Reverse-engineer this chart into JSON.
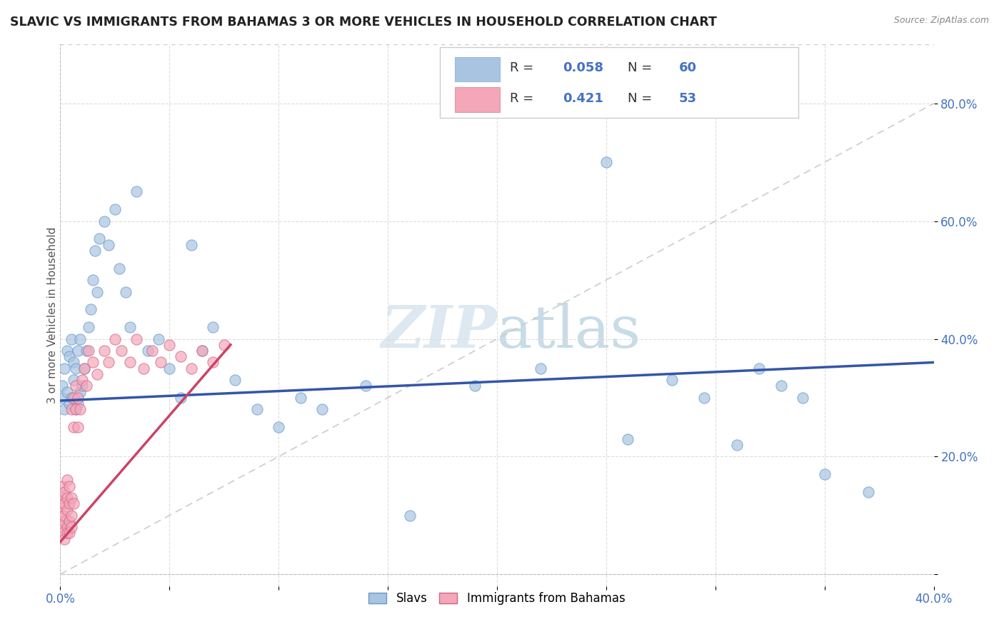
{
  "title": "SLAVIC VS IMMIGRANTS FROM BAHAMAS 3 OR MORE VEHICLES IN HOUSEHOLD CORRELATION CHART",
  "source": "Source: ZipAtlas.com",
  "ylabel": "3 or more Vehicles in Household",
  "xlim": [
    0.0,
    0.4
  ],
  "ylim": [
    -0.02,
    0.9
  ],
  "xticks": [
    0.0,
    0.05,
    0.1,
    0.15,
    0.2,
    0.25,
    0.3,
    0.35,
    0.4
  ],
  "xticklabels": [
    "0.0%",
    "",
    "",
    "",
    "",
    "",
    "",
    "",
    "40.0%"
  ],
  "yticks": [
    0.0,
    0.2,
    0.4,
    0.6,
    0.8
  ],
  "yticklabels": [
    "",
    "20.0%",
    "40.0%",
    "60.0%",
    "80.0%"
  ],
  "slavs_color": "#a8c4e0",
  "slavs_edge_color": "#6699cc",
  "bahamas_color": "#f4a7b9",
  "bahamas_edge_color": "#cc6688",
  "slavs_R": 0.058,
  "slavs_N": 60,
  "bahamas_R": 0.421,
  "bahamas_N": 53,
  "legend_labels": [
    "Slavs",
    "Immigrants from Bahamas"
  ],
  "slavs_line_color": "#3355aa",
  "bahamas_line_color": "#cc4466",
  "diagonal_line_color": "#cccccc",
  "watermark_color": "#dde8f0",
  "background_color": "#ffffff",
  "grid_color": "#dddddd",
  "slavs_x": [
    0.001,
    0.001,
    0.002,
    0.002,
    0.003,
    0.003,
    0.004,
    0.004,
    0.005,
    0.005,
    0.006,
    0.006,
    0.007,
    0.007,
    0.008,
    0.008,
    0.009,
    0.009,
    0.01,
    0.011,
    0.012,
    0.013,
    0.014,
    0.015,
    0.016,
    0.017,
    0.018,
    0.02,
    0.022,
    0.025,
    0.027,
    0.03,
    0.032,
    0.035,
    0.04,
    0.045,
    0.05,
    0.055,
    0.06,
    0.065,
    0.07,
    0.08,
    0.09,
    0.1,
    0.11,
    0.12,
    0.14,
    0.16,
    0.19,
    0.22,
    0.25,
    0.26,
    0.28,
    0.295,
    0.31,
    0.32,
    0.33,
    0.34,
    0.35,
    0.37
  ],
  "slavs_y": [
    0.3,
    0.32,
    0.28,
    0.35,
    0.31,
    0.38,
    0.29,
    0.37,
    0.3,
    0.4,
    0.33,
    0.36,
    0.28,
    0.35,
    0.29,
    0.38,
    0.31,
    0.4,
    0.32,
    0.35,
    0.38,
    0.42,
    0.45,
    0.5,
    0.55,
    0.48,
    0.57,
    0.6,
    0.56,
    0.62,
    0.52,
    0.48,
    0.42,
    0.65,
    0.38,
    0.4,
    0.35,
    0.3,
    0.56,
    0.38,
    0.42,
    0.33,
    0.28,
    0.25,
    0.3,
    0.28,
    0.32,
    0.1,
    0.32,
    0.35,
    0.7,
    0.23,
    0.33,
    0.3,
    0.22,
    0.35,
    0.32,
    0.3,
    0.17,
    0.14
  ],
  "bahamas_x": [
    0.0005,
    0.001,
    0.001,
    0.001,
    0.001,
    0.001,
    0.002,
    0.002,
    0.002,
    0.002,
    0.002,
    0.003,
    0.003,
    0.003,
    0.003,
    0.003,
    0.004,
    0.004,
    0.004,
    0.004,
    0.005,
    0.005,
    0.005,
    0.005,
    0.006,
    0.006,
    0.006,
    0.007,
    0.007,
    0.008,
    0.008,
    0.009,
    0.01,
    0.011,
    0.012,
    0.013,
    0.015,
    0.017,
    0.02,
    0.022,
    0.025,
    0.028,
    0.032,
    0.035,
    0.038,
    0.042,
    0.046,
    0.05,
    0.055,
    0.06,
    0.065,
    0.07,
    0.075
  ],
  "bahamas_y": [
    0.12,
    0.08,
    0.1,
    0.13,
    0.07,
    0.15,
    0.09,
    0.12,
    0.06,
    0.1,
    0.14,
    0.08,
    0.11,
    0.13,
    0.07,
    0.16,
    0.09,
    0.12,
    0.15,
    0.07,
    0.1,
    0.13,
    0.28,
    0.08,
    0.3,
    0.12,
    0.25,
    0.28,
    0.32,
    0.3,
    0.25,
    0.28,
    0.33,
    0.35,
    0.32,
    0.38,
    0.36,
    0.34,
    0.38,
    0.36,
    0.4,
    0.38,
    0.36,
    0.4,
    0.35,
    0.38,
    0.36,
    0.39,
    0.37,
    0.35,
    0.38,
    0.36,
    0.39
  ],
  "slavs_line_x": [
    0.0,
    0.4
  ],
  "slavs_line_y": [
    0.295,
    0.36
  ],
  "bahamas_line_x": [
    0.0,
    0.078
  ],
  "bahamas_line_y": [
    0.055,
    0.39
  ]
}
